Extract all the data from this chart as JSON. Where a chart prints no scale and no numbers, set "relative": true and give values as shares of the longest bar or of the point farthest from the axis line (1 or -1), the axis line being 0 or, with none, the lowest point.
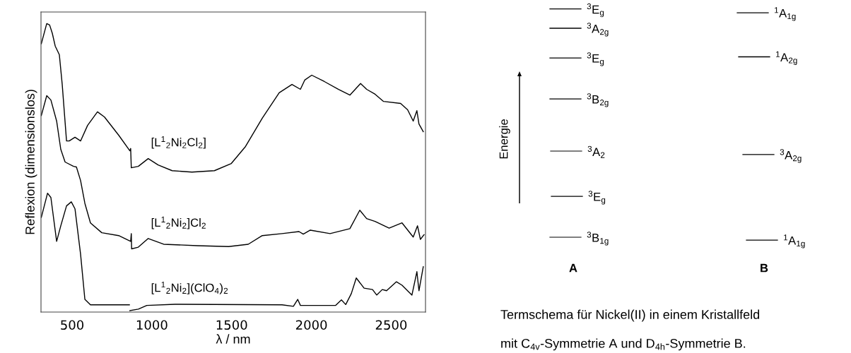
{
  "chart_data": [
    {
      "type": "line",
      "relative": true,
      "xlabel": "λ / nm",
      "ylabel": "Reflexion (dimensionslos)",
      "xlim": [
        305,
        2715
      ],
      "xticks": [
        500,
        1000,
        1500,
        2000,
        2500
      ],
      "grid": false,
      "legend": false,
      "tick_labels": "x",
      "series": [
        {
          "name": "[L$^{1}$$_{2}$Ni$_{2}$Cl$_{2}$]",
          "color": "#000000",
          "x": [
            307,
            341,
            359,
            376,
            394,
            420,
            438,
            465,
            482,
            518,
            553,
            597,
            659,
            703,
            792,
            862,
            867,
            871,
            915,
            977,
            1039,
            1127,
            1251,
            1392,
            1498,
            1587,
            1692,
            1798,
            1878,
            1931,
            1958,
            2002,
            2081,
            2170,
            2241,
            2308,
            2346,
            2399,
            2452,
            2559,
            2603,
            2638,
            2661,
            2674,
            2701
          ],
          "values": [
            0.93,
            1.0,
            0.995,
            0.966,
            0.922,
            0.892,
            0.789,
            0.593,
            0.593,
            0.606,
            0.593,
            0.647,
            0.694,
            0.676,
            0.613,
            0.559,
            0.567,
            0.5,
            0.505,
            0.532,
            0.51,
            0.49,
            0.485,
            0.49,
            0.515,
            0.574,
            0.672,
            0.76,
            0.789,
            0.772,
            0.804,
            0.821,
            0.799,
            0.772,
            0.752,
            0.792,
            0.772,
            0.755,
            0.73,
            0.723,
            0.701,
            0.662,
            0.698,
            0.652,
            0.625
          ]
        },
        {
          "name": "[L$^{1}$$_{2}$Ni$_{2}$]Cl$_{2}$",
          "color": "#000000",
          "x": [
            307,
            341,
            367,
            403,
            429,
            456,
            509,
            527,
            553,
            580,
            615,
            686,
            792,
            867,
            871,
            873,
            915,
            977,
            1074,
            1286,
            1481,
            1604,
            1692,
            1816,
            1922,
            1949,
            1993,
            2117,
            2241,
            2303,
            2346,
            2399,
            2487,
            2568,
            2638,
            2665,
            2683,
            2706
          ],
          "values": [
            0.681,
            0.75,
            0.735,
            0.662,
            0.564,
            0.52,
            0.505,
            0.503,
            0.456,
            0.377,
            0.309,
            0.275,
            0.265,
            0.245,
            0.272,
            0.219,
            0.225,
            0.255,
            0.235,
            0.23,
            0.227,
            0.235,
            0.265,
            0.272,
            0.279,
            0.27,
            0.284,
            0.272,
            0.289,
            0.353,
            0.324,
            0.314,
            0.291,
            0.309,
            0.26,
            0.299,
            0.252,
            0.268
          ]
        },
        {
          "name": "[L$^{1}$$_{2}$Ni$_{2}$](ClO$_{4}$)$_{2}$",
          "color": "#000000",
          "x": [
            307,
            346,
            367,
            403,
            429,
            465,
            495,
            518,
            553,
            580,
            615,
            859,
            860,
            862,
            915,
            968,
            1145,
            1816,
            1887,
            1914,
            1931,
            2152,
            2188,
            2215,
            2250,
            2281,
            2330,
            2383,
            2409,
            2444,
            2471,
            2533,
            2568,
            2630,
            2661,
            2674,
            2701
          ],
          "values": [
            0.328,
            0.412,
            0.397,
            0.245,
            0.299,
            0.368,
            0.382,
            0.358,
            0.201,
            0.044,
            0.025,
            0.025,
            null,
            0.005,
            0.01,
            0.023,
            0.027,
            0.025,
            0.02,
            0.044,
            0.023,
            0.023,
            0.042,
            0.026,
            0.064,
            0.118,
            0.083,
            0.078,
            0.059,
            0.078,
            0.074,
            0.105,
            0.093,
            0.059,
            0.14,
            0.074,
            0.157
          ]
        }
      ]
    },
    {
      "type": "other",
      "annotations": [
        "$^{3}$E$_{g}$",
        "$^{3}$A$_{2g}$",
        "$^{3}$E$_{g}$",
        "$^{3}$B$_{2g}$",
        "$^{3}$A$_{2}$",
        "$^{3}$E$_{g}$",
        "$^{3}$B$_{1g}$",
        "$^{1}$A$_{1g}$",
        "$^{1}$A$_{2g}$",
        "$^{3}$A$_{2g}$",
        "$^{1}$A$_{1g}$",
        "Energie",
        "A",
        "B",
        "Termschema für Nickel(II) in einem Kristallfeld",
        "mit C$_{4v}$-Symmetrie A und D$_{4h}$-Symmetrie B."
      ]
    }
  ]
}
